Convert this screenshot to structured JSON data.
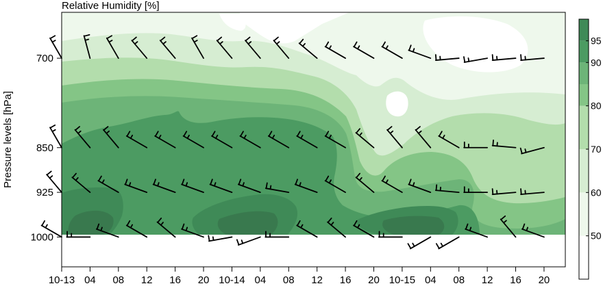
{
  "chart_data": {
    "type": "heatmap",
    "title": "Relative Humidity [%]",
    "xlabel": "",
    "ylabel": "Pressure levels [hPa]",
    "x_ticks": [
      "10-13",
      "04",
      "08",
      "12",
      "16",
      "20",
      "10-14",
      "04",
      "08",
      "12",
      "16",
      "20",
      "10-15",
      "04",
      "08",
      "12",
      "16",
      "20"
    ],
    "x_tick_hours": [
      0,
      4,
      8,
      12,
      16,
      20,
      24,
      28,
      32,
      36,
      40,
      44,
      48,
      52,
      56,
      60,
      64,
      68
    ],
    "x_range_hours": [
      0,
      71
    ],
    "y_levels": [
      700,
      850,
      925,
      1000
    ],
    "y_range": [
      623,
      1050
    ],
    "colorbar": {
      "ticks": [
        50,
        60,
        70,
        80,
        90,
        95
      ],
      "bounds": [
        40,
        50,
        60,
        70,
        80,
        85,
        90,
        95,
        100
      ],
      "colors": [
        "#ffffff",
        "#eef8ec",
        "#d6edd2",
        "#b3ddac",
        "#84c586",
        "#6db478",
        "#4c9b62",
        "#3f8a57",
        "#356b47"
      ]
    },
    "humidity_bands": [
      {
        "level_index": 1,
        "label": "60-70",
        "hours": [
          0,
          71
        ],
        "pressure": [
          623,
          1000
        ]
      },
      {
        "level_index": 2,
        "label": "70-80",
        "hours": [
          0,
          71
        ],
        "pressure": [
          735,
          1000
        ]
      },
      {
        "level_index": 3,
        "label": "80-85",
        "hours": [
          0,
          50
        ],
        "pressure": [
          790,
          1000
        ]
      },
      {
        "level_index": 4,
        "label": "85-90",
        "hours": [
          1,
          48
        ],
        "pressure": [
          815,
          1000
        ]
      },
      {
        "level_index": 5,
        "label": "90-95",
        "hours": [
          3,
          38
        ],
        "pressure": [
          850,
          1000
        ]
      },
      {
        "level_index": 6,
        "label": "95-100",
        "hours": [
          0,
          35
        ],
        "pressure": [
          925,
          1000
        ]
      }
    ],
    "wind_rows": [
      {
        "pressure": 700,
        "hours": [
          0,
          4,
          8,
          12,
          16,
          20,
          24,
          28,
          32,
          36,
          40,
          44,
          48,
          52,
          56,
          60,
          64,
          68
        ],
        "direction_deg": [
          330,
          345,
          330,
          320,
          320,
          330,
          320,
          320,
          320,
          310,
          300,
          300,
          300,
          290,
          265,
          260,
          265,
          265
        ]
      },
      {
        "pressure": 850,
        "hours": [
          0,
          4,
          8,
          12,
          16,
          20,
          24,
          28,
          32,
          36,
          40,
          44,
          48,
          52,
          56,
          60,
          64,
          68
        ],
        "direction_deg": [
          330,
          320,
          320,
          300,
          300,
          300,
          300,
          300,
          300,
          300,
          300,
          310,
          320,
          320,
          300,
          270,
          275,
          255
        ]
      },
      {
        "pressure": 925,
        "hours": [
          0,
          4,
          8,
          12,
          16,
          20,
          24,
          28,
          32,
          36,
          40,
          44,
          48,
          52,
          56,
          60,
          64,
          68
        ],
        "direction_deg": [
          320,
          310,
          300,
          290,
          290,
          290,
          290,
          290,
          280,
          290,
          300,
          310,
          300,
          290,
          275,
          270,
          265,
          265
        ]
      },
      {
        "pressure": 1000,
        "hours": [
          0,
          4,
          8,
          12,
          16,
          20,
          24,
          28,
          32,
          36,
          40,
          44,
          48,
          52,
          56,
          60,
          64,
          68
        ],
        "direction_deg": [
          300,
          270,
          290,
          300,
          310,
          290,
          260,
          250,
          270,
          300,
          310,
          300,
          270,
          240,
          240,
          290,
          320,
          290
        ]
      }
    ]
  }
}
